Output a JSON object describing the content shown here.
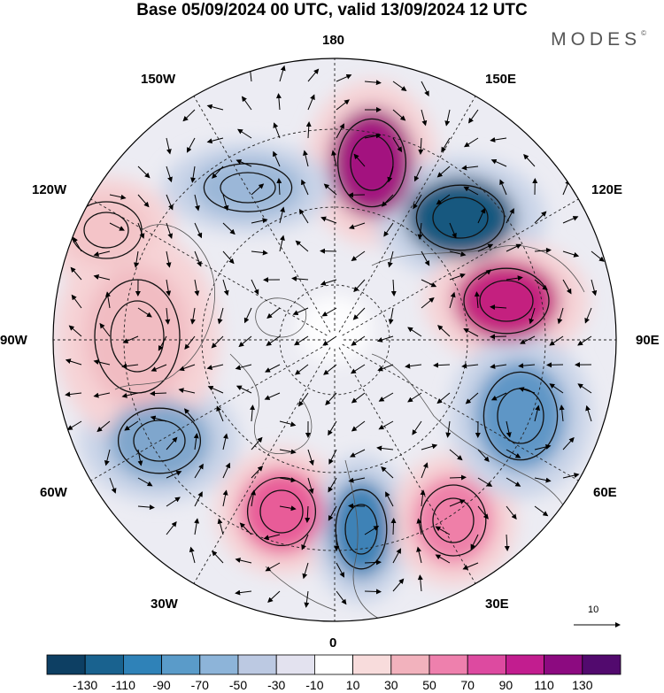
{
  "title": "Base 05/09/2024 00 UTC, valid 13/09/2024 12 UTC",
  "brand": "MODES",
  "brand_mark": "©",
  "longitude_labels": [
    {
      "text": "180",
      "lon": 180
    },
    {
      "text": "150E",
      "lon": 150
    },
    {
      "text": "120E",
      "lon": 120
    },
    {
      "text": "90E",
      "lon": 90
    },
    {
      "text": "60E",
      "lon": 60
    },
    {
      "text": "30E",
      "lon": 30
    },
    {
      "text": "0",
      "lon": 0
    },
    {
      "text": "30W",
      "lon": -30
    },
    {
      "text": "60W",
      "lon": -60
    },
    {
      "text": "90W",
      "lon": -90
    },
    {
      "text": "120W",
      "lon": -120
    },
    {
      "text": "150W",
      "lon": -150
    }
  ],
  "reference_vector": {
    "label": "10"
  },
  "colorbar": {
    "ticks": [
      "-130",
      "-110",
      "-90",
      "-70",
      "-50",
      "-30",
      "-10",
      "10",
      "30",
      "50",
      "70",
      "90",
      "110",
      "130"
    ],
    "colors": [
      "#0d3f63",
      "#19628f",
      "#2f82b8",
      "#5a9bc9",
      "#8db4d9",
      "#bcc9e2",
      "#e3e2ef",
      "#ffffff",
      "#f8dcdc",
      "#f2b2bd",
      "#ee80ad",
      "#dd4aa0",
      "#c21d8f",
      "#8c0a80",
      "#520a6e"
    ]
  },
  "anomaly_centers": [
    {
      "sign": "positive",
      "value": 120,
      "color": "#a3127f"
    },
    {
      "sign": "negative",
      "value": -130,
      "color": "#18587f"
    },
    {
      "sign": "positive",
      "value": 100,
      "color": "#c4207f"
    },
    {
      "sign": "negative",
      "value": -60,
      "color": "#7fa6cc"
    },
    {
      "sign": "positive",
      "value": 75,
      "color": "#e85c98"
    },
    {
      "sign": "negative",
      "value": -90,
      "color": "#3e82b6"
    },
    {
      "sign": "positive",
      "value": 60,
      "color": "#ee7fa8"
    },
    {
      "sign": "negative",
      "value": -70,
      "color": "#5e96c6"
    },
    {
      "sign": "negative",
      "value": -50,
      "color": "#9bb7d8"
    },
    {
      "sign": "positive",
      "value": 40,
      "color": "#f1bcc2"
    },
    {
      "sign": "positive",
      "value": 35,
      "color": "#f3c4c8"
    }
  ]
}
